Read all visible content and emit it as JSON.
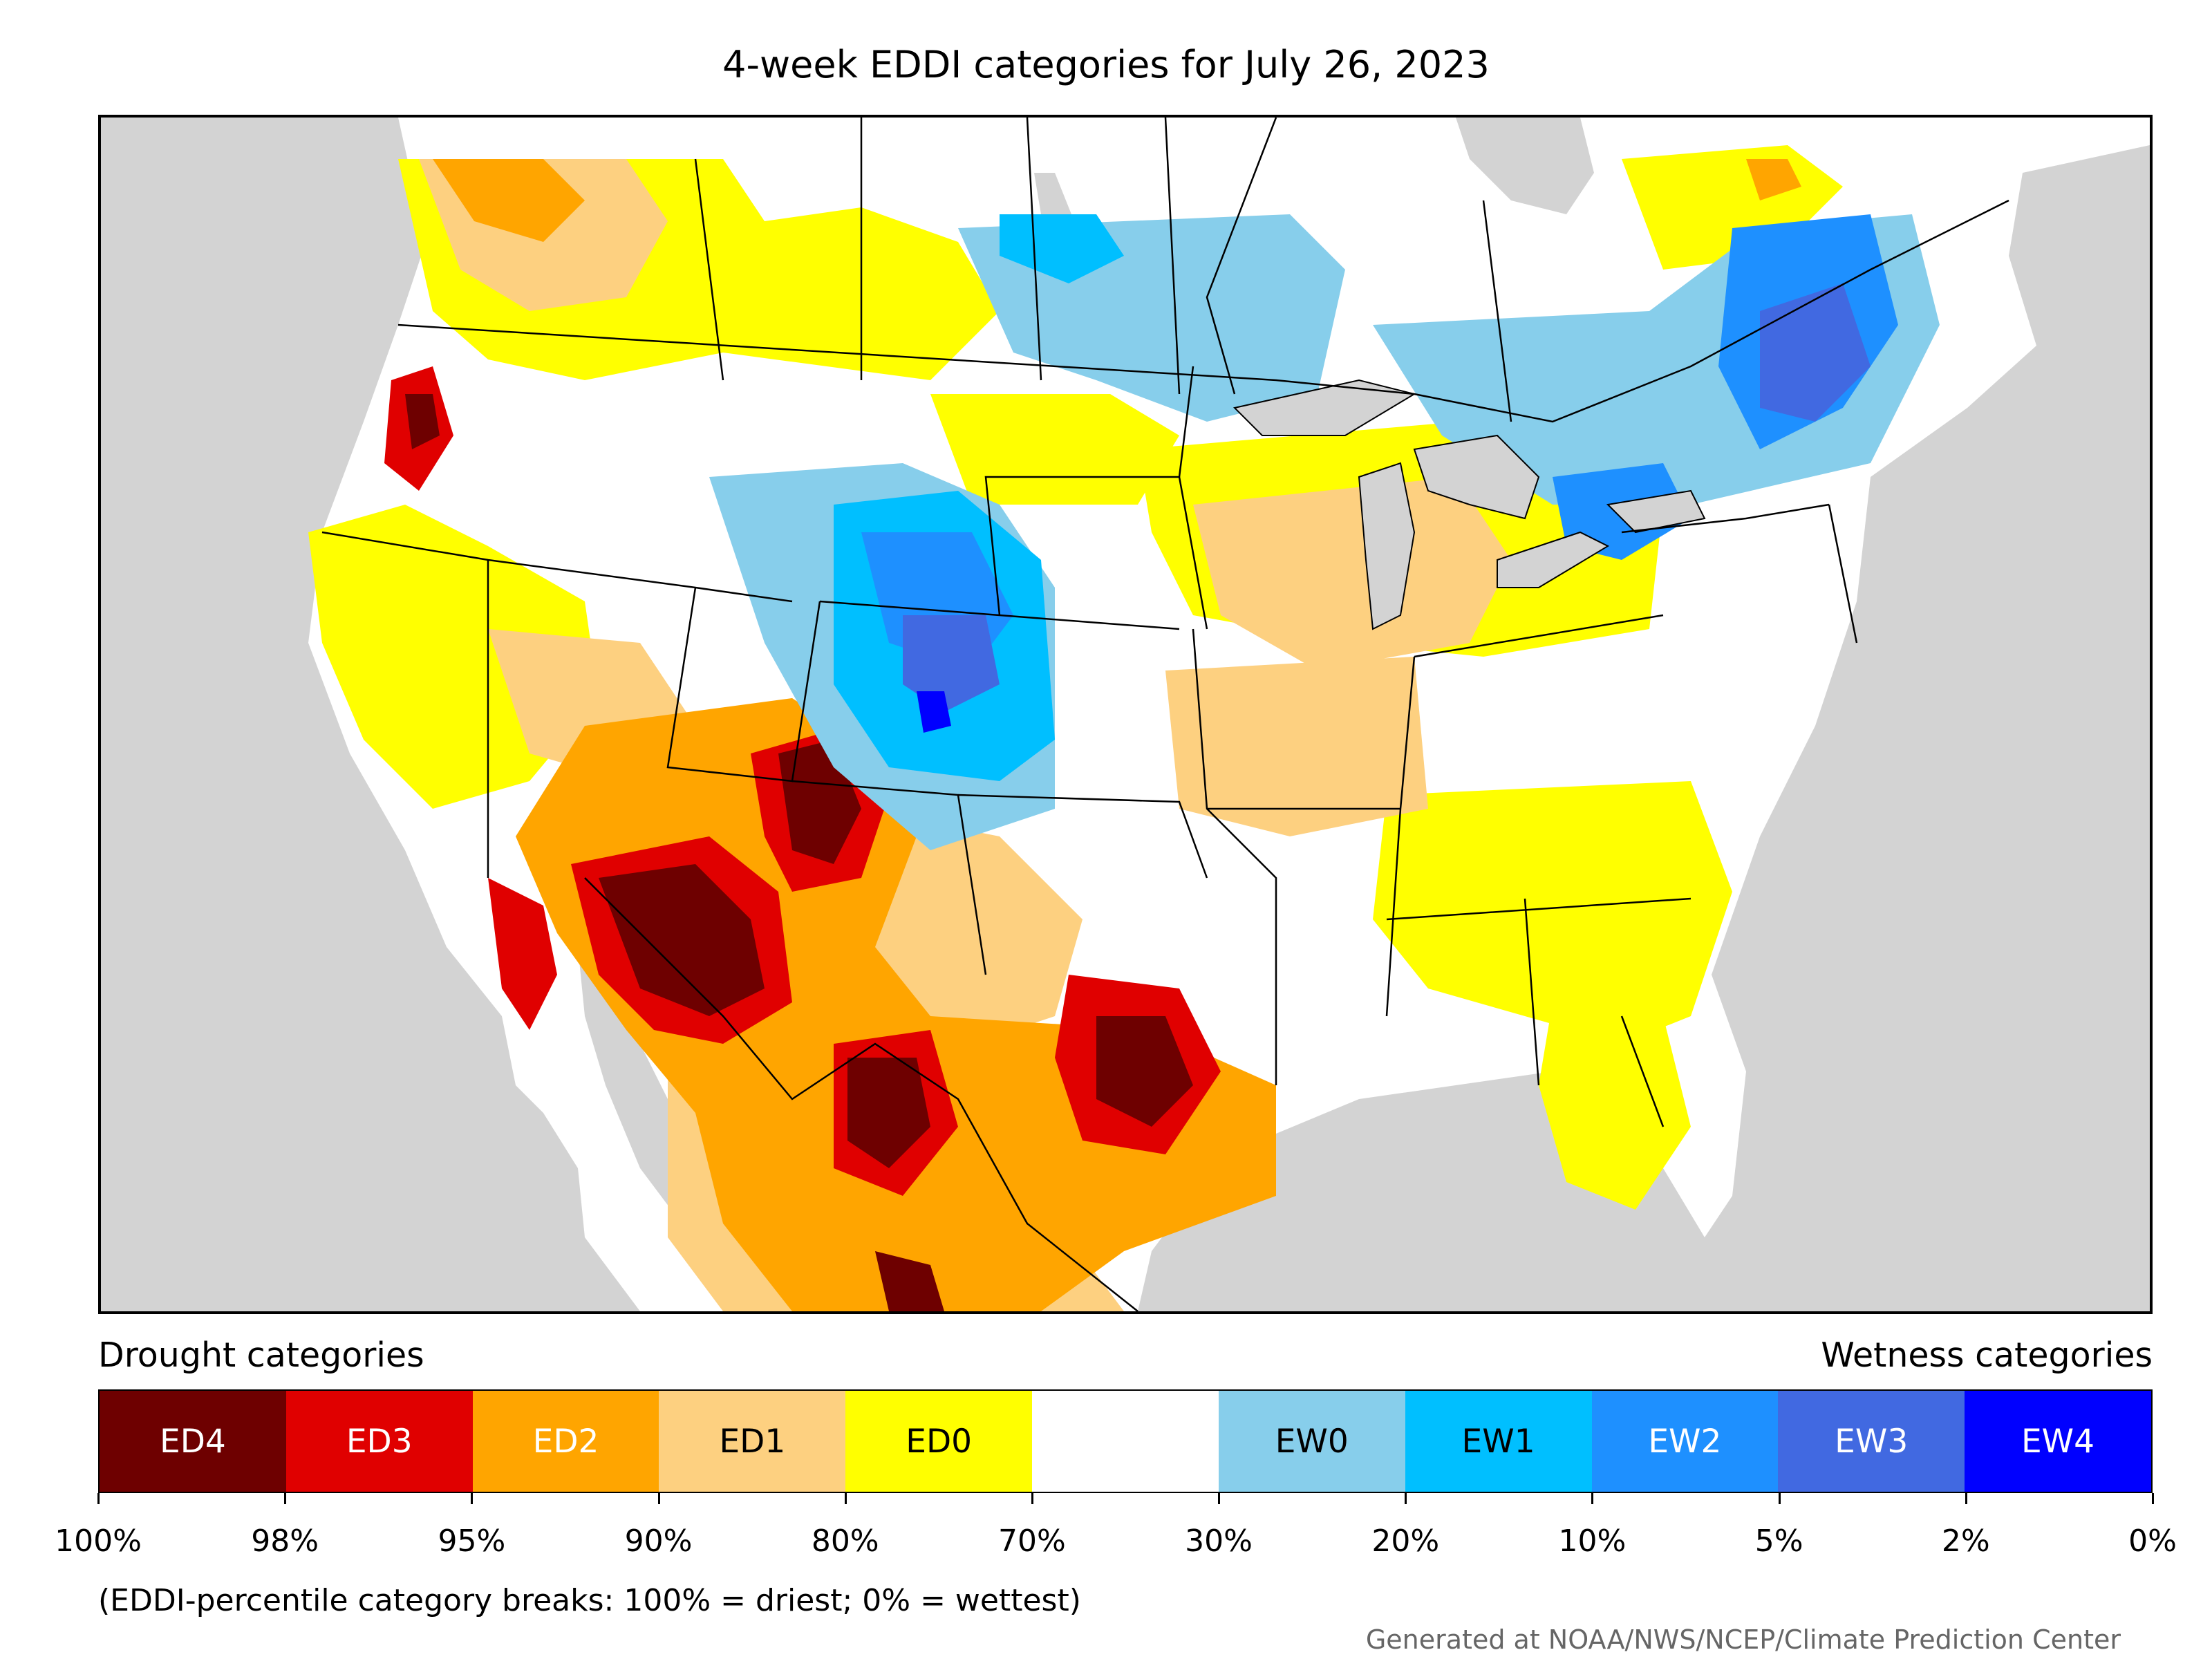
{
  "title": "4-week EDDI categories for July 26, 2023",
  "map": {
    "land_color": "#ffffff",
    "water_color": "#d3d3d3",
    "border_color": "#000000"
  },
  "legend": {
    "left_label": "Drought categories",
    "right_label": "Wetness categories",
    "categories": [
      {
        "label": "ED4",
        "color": "#6e0000",
        "text_color": "#ffffff"
      },
      {
        "label": "ED3",
        "color": "#e00000",
        "text_color": "#ffffff"
      },
      {
        "label": "ED2",
        "color": "#ffa500",
        "text_color": "#ffffff"
      },
      {
        "label": "ED1",
        "color": "#fdd080",
        "text_color": "#000000"
      },
      {
        "label": "ED0",
        "color": "#ffff00",
        "text_color": "#000000"
      },
      {
        "label": "",
        "color": "#ffffff",
        "text_color": "#000000"
      },
      {
        "label": "EW0",
        "color": "#87ceeb",
        "text_color": "#000000"
      },
      {
        "label": "EW1",
        "color": "#00bfff",
        "text_color": "#000000"
      },
      {
        "label": "EW2",
        "color": "#1e90ff",
        "text_color": "#ffffff"
      },
      {
        "label": "EW3",
        "color": "#4169e1",
        "text_color": "#ffffff"
      },
      {
        "label": "EW4",
        "color": "#0000ff",
        "text_color": "#ffffff"
      }
    ],
    "ticks": [
      "100%",
      "98%",
      "95%",
      "90%",
      "80%",
      "70%",
      "30%",
      "20%",
      "10%",
      "5%",
      "2%",
      "0%"
    ]
  },
  "note": "(EDDI-percentile category breaks: 100% = driest; 0% = wettest)",
  "credit": "Generated at NOAA/NWS/NCEP/Climate Prediction Center"
}
